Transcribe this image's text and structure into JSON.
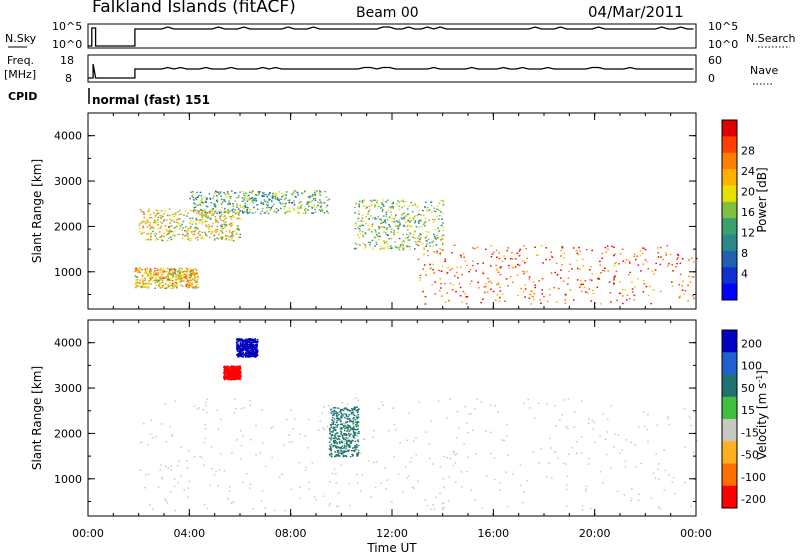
{
  "header": {
    "site": "Falkland Islands (fitACF)",
    "beam": "Beam 00",
    "date": "04/Mar/2011"
  },
  "nsky_panel": {
    "left_label": "N.Sky",
    "right_label": "N.Search",
    "right_legend_style": "dotted",
    "left_ticks": [
      "10^5",
      "10^0"
    ],
    "right_ticks": [
      "10^5",
      "10^0"
    ]
  },
  "freq_panel": {
    "left_label_line1": "Freq.",
    "left_label_line2": "[MHz]",
    "right_label": "Nave",
    "right_legend_style": "dotted",
    "left_ticks": [
      "18",
      "8"
    ],
    "right_ticks": [
      "60",
      "0"
    ]
  },
  "cpid_panel": {
    "label": "CPID",
    "value": "normal (fast) 151"
  },
  "power_panel": {
    "ylabel": "Slant Range [km]",
    "yticks": [
      "4000",
      "3000",
      "2000",
      "1000"
    ],
    "colorbar_label": "Power [dB]",
    "colorbar_ticks": [
      "28",
      "24",
      "20",
      "16",
      "12",
      "8",
      "4"
    ],
    "colorbar_colors": [
      "#e00000",
      "#ff4000",
      "#ff7f00",
      "#ffb000",
      "#e8e000",
      "#80c040",
      "#3aa070",
      "#2a8a8a",
      "#2060b0",
      "#1030d0",
      "#0000ff"
    ]
  },
  "velocity_panel": {
    "ylabel": "Slant Range [km]",
    "yticks": [
      "4000",
      "3000",
      "2000",
      "1000"
    ],
    "colorbar_label": "Velocity [m s",
    "colorbar_label_sup": "-1",
    "colorbar_label_end": "]",
    "colorbar_ticks": [
      "200",
      "100",
      "50",
      "15",
      "-15",
      "-50",
      "-100",
      "-200"
    ],
    "colorbar_colors": [
      "#0000c0",
      "#2060d0",
      "#207070",
      "#40c040",
      "#c8c8c0",
      "#ffb020",
      "#ff7000",
      "#ff0000"
    ]
  },
  "xaxis": {
    "ticks": [
      "00:00",
      "04:00",
      "08:00",
      "12:00",
      "16:00",
      "20:00",
      "00:00"
    ],
    "label": "Time UT"
  },
  "chart_data": [
    {
      "type": "heatmap",
      "title": "Power [dB]",
      "xlabel": "Time UT",
      "ylabel": "Slant Range [km]",
      "xlim": [
        "00:00",
        "24:00"
      ],
      "ylim": [
        180,
        4500
      ],
      "zlim": [
        0,
        30
      ],
      "scatter_regions_described": [
        {
          "time": [
            "01:50",
            "04:20"
          ],
          "range_km": [
            650,
            1100
          ],
          "power_db": 20
        },
        {
          "time": [
            "02:00",
            "06:00"
          ],
          "range_km": [
            1700,
            2400
          ],
          "power_db": 18
        },
        {
          "time": [
            "04:00",
            "09:30"
          ],
          "range_km": [
            2300,
            2800
          ],
          "power_db": 12
        },
        {
          "time": [
            "10:30",
            "14:00"
          ],
          "range_km": [
            1500,
            2600
          ],
          "power_db": 14
        },
        {
          "time": [
            "13:00",
            "24:00"
          ],
          "range_km": [
            300,
            1600
          ],
          "power_db": 26
        }
      ]
    },
    {
      "type": "heatmap",
      "title": "Velocity [m s-1]",
      "xlabel": "Time UT",
      "ylabel": "Slant Range [km]",
      "xlim": [
        "00:00",
        "24:00"
      ],
      "ylim": [
        180,
        4500
      ],
      "zlim": [
        -250,
        250
      ],
      "scatter_regions_described": [
        {
          "time": [
            "05:50",
            "06:40"
          ],
          "range_km": [
            3700,
            4100
          ],
          "velocity": 200
        },
        {
          "time": [
            "05:20",
            "06:00"
          ],
          "range_km": [
            3200,
            3500
          ],
          "velocity": -200
        },
        {
          "time": [
            "09:30",
            "10:40"
          ],
          "range_km": [
            1500,
            2600
          ],
          "velocity": 40
        },
        {
          "time": [
            "02:00",
            "24:00"
          ],
          "range_km": [
            300,
            2800
          ],
          "velocity": 0
        }
      ]
    }
  ]
}
